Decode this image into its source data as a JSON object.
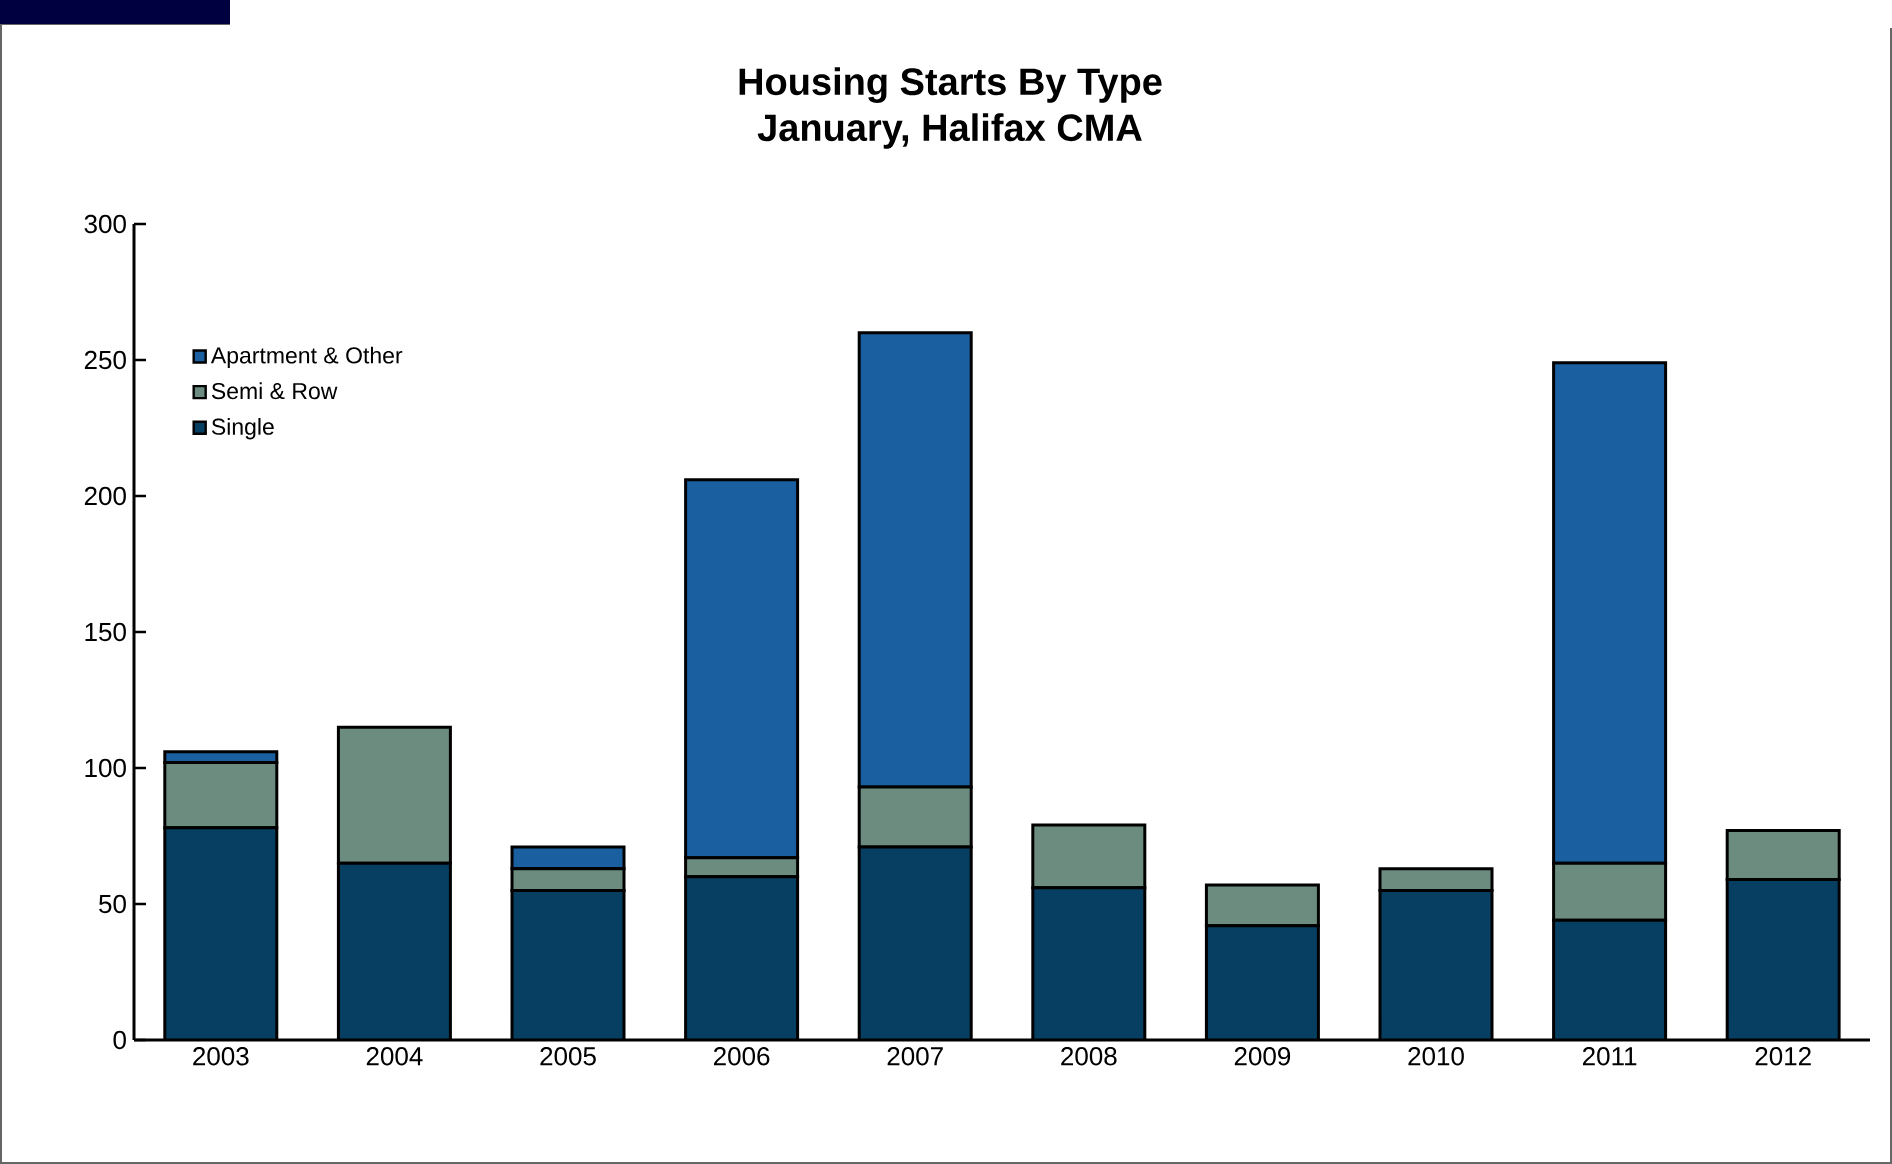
{
  "chart_data": {
    "type": "bar",
    "stacked": true,
    "title": "Housing Starts By Type\nJanuary, Halifax CMA",
    "categories": [
      "2003",
      "2004",
      "2005",
      "2006",
      "2007",
      "2008",
      "2009",
      "2010",
      "2011",
      "2012"
    ],
    "series": [
      {
        "name": "Single",
        "color": "#073f63",
        "values": [
          78,
          65,
          55,
          60,
          71,
          56,
          42,
          55,
          44,
          59
        ]
      },
      {
        "name": "Semi & Row",
        "color": "#6b8c7e",
        "values": [
          24,
          50,
          8,
          7,
          22,
          23,
          15,
          8,
          21,
          18
        ]
      },
      {
        "name": "Apartment & Other",
        "color": "#1a5fa0",
        "values": [
          4,
          0,
          8,
          139,
          167,
          0,
          0,
          0,
          184,
          0
        ]
      }
    ],
    "ylim": [
      0,
      300
    ],
    "yticks": [
      0,
      50,
      100,
      150,
      200,
      250,
      300
    ],
    "grid": false,
    "legend": "top left"
  }
}
